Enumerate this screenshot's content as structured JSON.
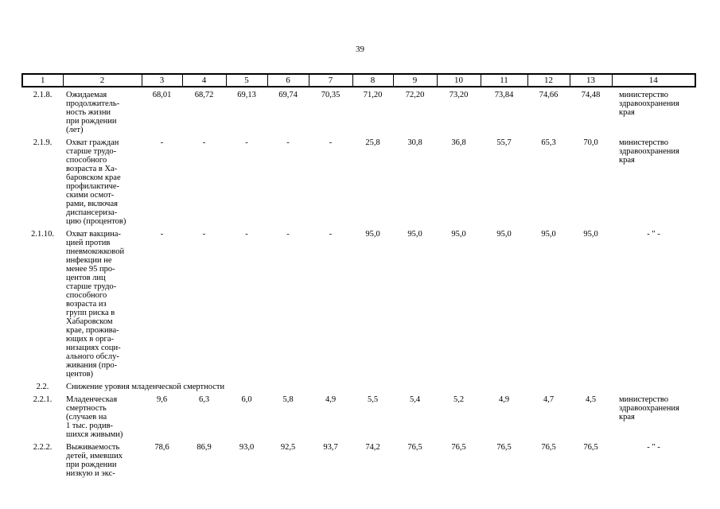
{
  "page": {
    "number": "39"
  },
  "table": {
    "header": [
      "1",
      "2",
      "3",
      "4",
      "5",
      "6",
      "7",
      "8",
      "9",
      "10",
      "11",
      "12",
      "13",
      "14"
    ],
    "rows": [
      {
        "num": "2.1.8.",
        "name_lines": [
          "Ожидаемая",
          "продолжитель-",
          "ность жизни",
          "при рождении",
          "(лет)"
        ],
        "values": [
          "68,01",
          "68,72",
          "69,13",
          "69,74",
          "70,35",
          "71,20",
          "72,20",
          "73,20",
          "73,84",
          "74,66",
          "74,48"
        ],
        "executor_lines": [
          "министерство",
          "здравоохранения",
          "края"
        ],
        "executor_align": "left"
      },
      {
        "num": "2.1.9.",
        "name_lines": [
          "Охват граждан",
          "старше трудо-",
          "способного",
          "возраста в Ха-",
          "баровском крае",
          "профилактиче-",
          "скими осмот-",
          "рами, включая",
          "диспансериза-",
          "цию (процентов)"
        ],
        "values": [
          "-",
          "-",
          "-",
          "-",
          "-",
          "25,8",
          "30,8",
          "36,8",
          "55,7",
          "65,3",
          "70,0"
        ],
        "executor_lines": [
          "министерство",
          "здравоохранения",
          "края"
        ],
        "executor_align": "left"
      },
      {
        "num": "2.1.10.",
        "name_lines": [
          "Охват вакцина-",
          "цией против",
          "пневмококковой",
          "инфекции не",
          "менее 95 про-",
          "центов лиц",
          "старше трудо-",
          "способного",
          "возраста из",
          "групп риска в",
          "Хабаровском",
          "крае, прожива-",
          "ющих в орга-",
          "низациях соци-",
          "ального обслу-",
          "живания (про-",
          "центов)"
        ],
        "values": [
          "-",
          "-",
          "-",
          "-",
          "-",
          "95,0",
          "95,0",
          "95,0",
          "95,0",
          "95,0",
          "95,0"
        ],
        "executor_lines": [
          "- \" -"
        ],
        "executor_align": "center"
      },
      {
        "num": "2.2.",
        "section": "Снижение уровня младенческой смертности"
      },
      {
        "num": "2.2.1.",
        "name_lines": [
          "Младенческая",
          "смертность",
          "(случаев на",
          "1 тыс. родив-",
          "шихся живыми)"
        ],
        "values": [
          "9,6",
          "6,3",
          "6,0",
          "5,8",
          "4,9",
          "5,5",
          "5,4",
          "5,2",
          "4,9",
          "4,7",
          "4,5"
        ],
        "executor_lines": [
          "министерство",
          "здравоохранения",
          "края"
        ],
        "executor_align": "left"
      },
      {
        "num": "2.2.2.",
        "name_lines": [
          "Выживаемость",
          "детей, имевших",
          "при рождении",
          "низкую и экс-"
        ],
        "values": [
          "78,6",
          "86,9",
          "93,0",
          "92,5",
          "93,7",
          "74,2",
          "76,5",
          "76,5",
          "76,5",
          "76,5",
          "76,5"
        ],
        "executor_lines": [
          "- \" -"
        ],
        "executor_align": "center"
      }
    ]
  }
}
